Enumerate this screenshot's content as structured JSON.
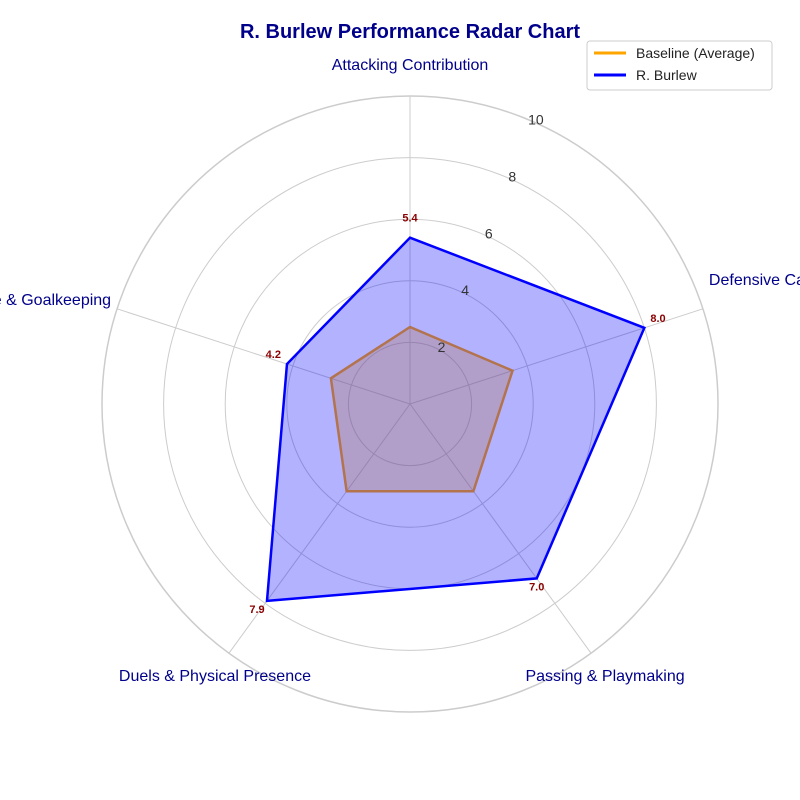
{
  "chart_data": {
    "type": "radar",
    "title": "R. Burlew Performance Radar Chart",
    "categories": [
      "Attacking Contribution",
      "Defensive Capability",
      "Passing & Playmaking",
      "Duels & Physical Presence",
      "Discipline & Goalkeeping"
    ],
    "rlim": [
      0,
      10
    ],
    "ticks": [
      2,
      4,
      6,
      8,
      10
    ],
    "grid": true,
    "legend_position": "top-right",
    "series": [
      {
        "name": "Baseline (Average)",
        "values": [
          2.5,
          3.5,
          3.5,
          3.5,
          2.7
        ],
        "color": "#ffa500",
        "fill": "#ffa500",
        "show_labels": false
      },
      {
        "name": "R. Burlew",
        "values": [
          5.4,
          8.0,
          7.0,
          7.9,
          4.2
        ],
        "color": "#0000ff",
        "fill": "#0000ff",
        "show_labels": true
      }
    ],
    "data_labels": [
      "5.4",
      "8.0",
      "7.0",
      "7.9",
      "4.2"
    ],
    "tick_labels": [
      "2",
      "4",
      "6",
      "8",
      "10"
    ]
  }
}
